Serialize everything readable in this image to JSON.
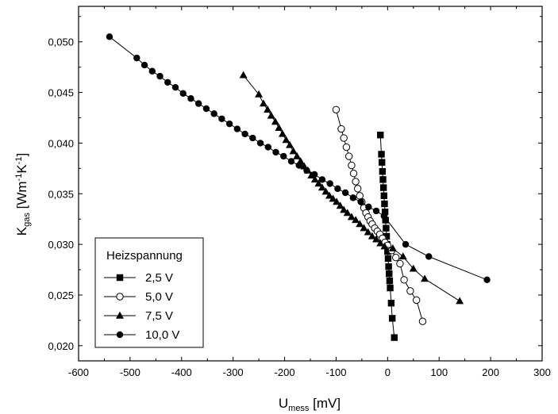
{
  "chart_data": {
    "type": "scatter",
    "xlabel": {
      "main": "U",
      "sub": "mess",
      "unit": " [mV]"
    },
    "ylabel": {
      "main": "K",
      "sub": "gas",
      "unit_a": " [Wm",
      "sup_a": "-1",
      "unit_b": "K",
      "sup_b": "-1",
      "unit_c": "]"
    },
    "xlim": [
      -600,
      300
    ],
    "ylim": [
      0.0185,
      0.0535
    ],
    "xticks": [
      -600,
      -500,
      -400,
      -300,
      -200,
      -100,
      0,
      100,
      200,
      300
    ],
    "xtick_labels": [
      "-600",
      "-500",
      "-400",
      "-300",
      "-200",
      "-100",
      "0",
      "100",
      "200",
      "300"
    ],
    "yticks": [
      0.02,
      0.025,
      0.03,
      0.035,
      0.04,
      0.045,
      0.05
    ],
    "ytick_labels": [
      "0,020",
      "0,025",
      "0,030",
      "0,035",
      "0,040",
      "0,045",
      "0,050"
    ],
    "legend_title": "Heizspannung",
    "legend_position": "bottom-left",
    "series": [
      {
        "name": "2,5 V",
        "marker": "square-filled",
        "points": [
          [
            -14,
            0.0408
          ],
          [
            -12,
            0.0389
          ],
          [
            -11,
            0.0381
          ],
          [
            -10,
            0.0372
          ],
          [
            -9,
            0.0364
          ],
          [
            -8,
            0.0356
          ],
          [
            -7,
            0.0348
          ],
          [
            -6,
            0.034
          ],
          [
            -5,
            0.0332
          ],
          [
            -4,
            0.0324
          ],
          [
            -3,
            0.0316
          ],
          [
            -2,
            0.0308
          ],
          [
            -1,
            0.03
          ],
          [
            0,
            0.0293
          ],
          [
            1,
            0.0286
          ],
          [
            2,
            0.0278
          ],
          [
            3,
            0.0271
          ],
          [
            4,
            0.0264
          ],
          [
            5,
            0.0257
          ],
          [
            7,
            0.0242
          ],
          [
            9,
            0.0227
          ],
          [
            13,
            0.0208
          ]
        ]
      },
      {
        "name": "5,0 V",
        "marker": "circle-open",
        "points": [
          [
            -100,
            0.0433
          ],
          [
            -90,
            0.0414
          ],
          [
            -85,
            0.0405
          ],
          [
            -80,
            0.0396
          ],
          [
            -75,
            0.0387
          ],
          [
            -70,
            0.0378
          ],
          [
            -66,
            0.037
          ],
          [
            -62,
            0.0362
          ],
          [
            -58,
            0.0355
          ],
          [
            -54,
            0.0348
          ],
          [
            -50,
            0.0342
          ],
          [
            -46,
            0.0336
          ],
          [
            -42,
            0.0331
          ],
          [
            -38,
            0.0327
          ],
          [
            -34,
            0.0323
          ],
          [
            -30,
            0.032
          ],
          [
            -25,
            0.0316
          ],
          [
            -20,
            0.0313
          ],
          [
            -15,
            0.031
          ],
          [
            -10,
            0.0306
          ],
          [
            -5,
            0.0302
          ],
          [
            0,
            0.0299
          ],
          [
            8,
            0.0294
          ],
          [
            16,
            0.0287
          ],
          [
            24,
            0.0281
          ],
          [
            32,
            0.0265
          ],
          [
            44,
            0.0254
          ],
          [
            56,
            0.0245
          ],
          [
            68,
            0.0224
          ]
        ]
      },
      {
        "name": "7,5 V",
        "marker": "triangle-filled",
        "points": [
          [
            -280,
            0.0467
          ],
          [
            -250,
            0.0448
          ],
          [
            -241,
            0.0439
          ],
          [
            -233,
            0.0433
          ],
          [
            -226,
            0.0427
          ],
          [
            -218,
            0.0421
          ],
          [
            -211,
            0.0415
          ],
          [
            -204,
            0.0409
          ],
          [
            -197,
            0.0403
          ],
          [
            -190,
            0.0398
          ],
          [
            -183,
            0.0392
          ],
          [
            -176,
            0.0387
          ],
          [
            -169,
            0.0382
          ],
          [
            -162,
            0.0377
          ],
          [
            -155,
            0.0373
          ],
          [
            -148,
            0.0368
          ],
          [
            -141,
            0.0364
          ],
          [
            -134,
            0.036
          ],
          [
            -127,
            0.0356
          ],
          [
            -120,
            0.0352
          ],
          [
            -113,
            0.0348
          ],
          [
            -106,
            0.0345
          ],
          [
            -99,
            0.0342
          ],
          [
            -92,
            0.0338
          ],
          [
            -85,
            0.0334
          ],
          [
            -78,
            0.0331
          ],
          [
            -70,
            0.0327
          ],
          [
            -62,
            0.0324
          ],
          [
            -54,
            0.032
          ],
          [
            -46,
            0.0316
          ],
          [
            -38,
            0.0312
          ],
          [
            -30,
            0.0308
          ],
          [
            -22,
            0.0305
          ],
          [
            -14,
            0.0301
          ],
          [
            -6,
            0.0298
          ],
          [
            10,
            0.0296
          ],
          [
            30,
            0.0288
          ],
          [
            50,
            0.0276
          ],
          [
            72,
            0.0266
          ],
          [
            140,
            0.0244
          ]
        ]
      },
      {
        "name": "10,0 V",
        "marker": "circle-filled",
        "points": [
          [
            -540,
            0.0505
          ],
          [
            -487,
            0.0484
          ],
          [
            -472,
            0.0477
          ],
          [
            -457,
            0.0471
          ],
          [
            -442,
            0.0466
          ],
          [
            -427,
            0.046
          ],
          [
            -412,
            0.0455
          ],
          [
            -397,
            0.0449
          ],
          [
            -382,
            0.0444
          ],
          [
            -367,
            0.0439
          ],
          [
            -352,
            0.0434
          ],
          [
            -337,
            0.0429
          ],
          [
            -322,
            0.0424
          ],
          [
            -307,
            0.0419
          ],
          [
            -292,
            0.0414
          ],
          [
            -277,
            0.0409
          ],
          [
            -262,
            0.0405
          ],
          [
            -247,
            0.04
          ],
          [
            -232,
            0.0396
          ],
          [
            -217,
            0.0391
          ],
          [
            -202,
            0.0387
          ],
          [
            -187,
            0.0382
          ],
          [
            -172,
            0.0378
          ],
          [
            -157,
            0.0373
          ],
          [
            -142,
            0.0369
          ],
          [
            -127,
            0.0364
          ],
          [
            -112,
            0.036
          ],
          [
            -97,
            0.0355
          ],
          [
            -82,
            0.0351
          ],
          [
            -67,
            0.0346
          ],
          [
            -52,
            0.0342
          ],
          [
            -37,
            0.0337
          ],
          [
            -22,
            0.0333
          ],
          [
            -7,
            0.0328
          ],
          [
            35,
            0.03
          ],
          [
            80,
            0.0288
          ],
          [
            193,
            0.0265
          ]
        ]
      }
    ]
  }
}
